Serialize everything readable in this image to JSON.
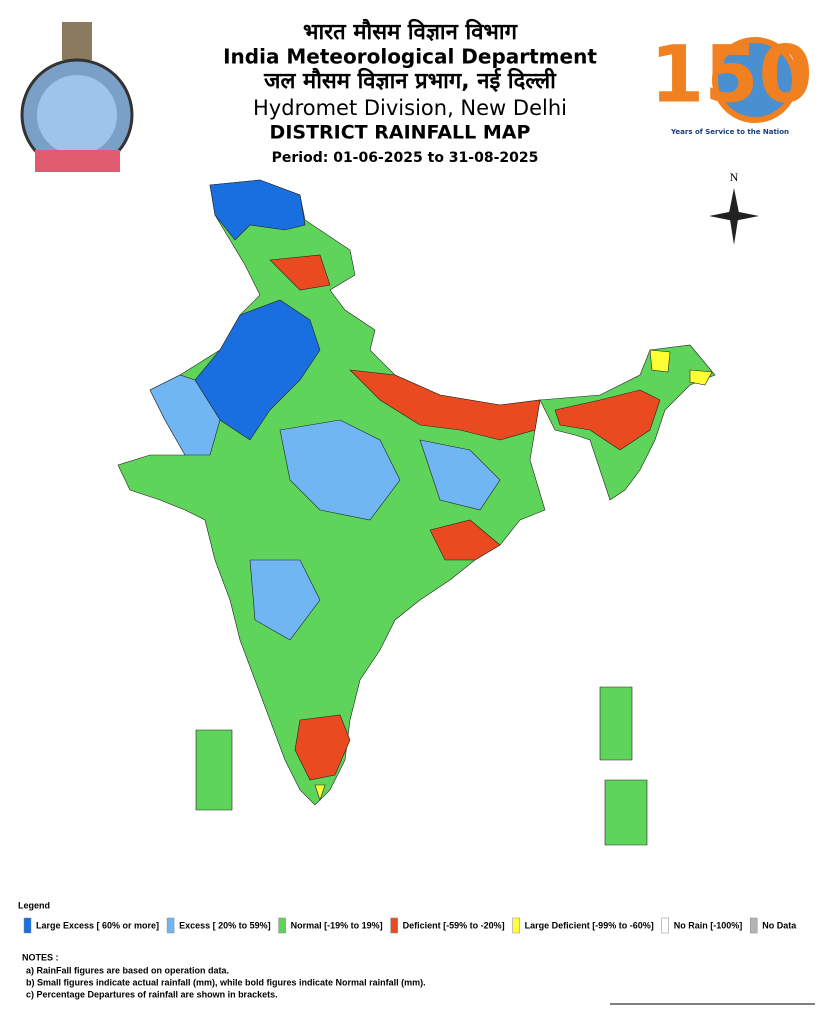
{
  "header": {
    "title_hindi": "भारत मौसम विज्ञान विभाग",
    "title": "India Meteorological Department",
    "division_hindi": "जल मौसम विज्ञान प्रभाग, नई दिल्ली",
    "division": "Hydromet Division, New Delhi",
    "map_title": "DISTRICT RAINFALL MAP",
    "period": "Period: 01-06-2025 to 31-08-2025"
  },
  "logo": {
    "number": "150",
    "tagline": "Years of Service to the Nation"
  },
  "compass": "N",
  "legend": {
    "title": "Legend",
    "items": [
      {
        "label": "Large Excess [ 60% or more]",
        "color": "#1a6fe0"
      },
      {
        "label": "Excess [ 20% to 59%]",
        "color": "#6fb6f2"
      },
      {
        "label": "Normal [-19% to 19%]",
        "color": "#5fd45a"
      },
      {
        "label": "Deficient [-59% to -20%]",
        "color": "#ea4a1f"
      },
      {
        "label": "Large Deficient [-99% to -60%]",
        "color": "#ffff33"
      },
      {
        "label": "No Rain  [-100%]",
        "color": "#ffffff"
      },
      {
        "label": "No Data",
        "color": "#b4b4b4"
      }
    ]
  },
  "notes": {
    "title": "NOTES :",
    "items": [
      "a) RainFall figures are based on operation data.",
      "b) Small figures indicate actual rainfall (mm), while bold figures indicate Normal rainfall (mm).",
      "c) Percentage Departures of rainfall are shown in brackets."
    ]
  }
}
